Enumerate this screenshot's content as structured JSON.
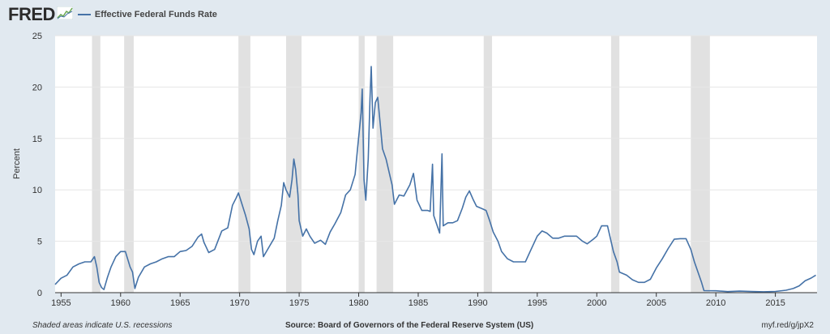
{
  "header": {
    "logo": "FRED",
    "legend_label": "Effective Federal Funds Rate",
    "series_color": "#4572a7"
  },
  "footer": {
    "note": "Shaded areas indicate U.S. recessions",
    "source": "Source: Board of Governors of the Federal Reserve System (US)",
    "link": "myf.red/g/jpX2"
  },
  "chart_data": {
    "type": "line",
    "title": "",
    "xlabel": "",
    "ylabel": "Percent",
    "xlim": [
      1954.5,
      2018.5
    ],
    "ylim": [
      0,
      25
    ],
    "yticks": [
      0,
      5,
      10,
      15,
      20,
      25
    ],
    "xticks": [
      1955,
      1960,
      1965,
      1970,
      1975,
      1980,
      1985,
      1990,
      1995,
      2000,
      2005,
      2010,
      2015
    ],
    "grid": true,
    "legend_position": "top-left",
    "recessions": [
      [
        1957.6,
        1958.3
      ],
      [
        1960.3,
        1961.1
      ],
      [
        1969.9,
        1970.9
      ],
      [
        1973.9,
        1975.2
      ],
      [
        1980.0,
        1980.5
      ],
      [
        1981.5,
        1982.9
      ],
      [
        1990.5,
        1991.2
      ],
      [
        2001.2,
        2001.9
      ],
      [
        2007.9,
        2009.5
      ]
    ],
    "series": [
      {
        "name": "Effective Federal Funds Rate",
        "color": "#4572a7",
        "points": [
          [
            1954.5,
            0.8
          ],
          [
            1955.0,
            1.4
          ],
          [
            1955.5,
            1.7
          ],
          [
            1956.0,
            2.5
          ],
          [
            1956.5,
            2.8
          ],
          [
            1957.0,
            3.0
          ],
          [
            1957.5,
            3.0
          ],
          [
            1957.8,
            3.5
          ],
          [
            1958.0,
            2.5
          ],
          [
            1958.2,
            1.0
          ],
          [
            1958.4,
            0.5
          ],
          [
            1958.6,
            0.3
          ],
          [
            1958.9,
            1.5
          ],
          [
            1959.2,
            2.5
          ],
          [
            1959.6,
            3.5
          ],
          [
            1960.0,
            4.0
          ],
          [
            1960.4,
            4.0
          ],
          [
            1960.8,
            2.5
          ],
          [
            1961.0,
            2.0
          ],
          [
            1961.2,
            0.4
          ],
          [
            1961.5,
            1.5
          ],
          [
            1962.0,
            2.5
          ],
          [
            1962.5,
            2.8
          ],
          [
            1963.0,
            3.0
          ],
          [
            1963.5,
            3.3
          ],
          [
            1964.0,
            3.5
          ],
          [
            1964.5,
            3.5
          ],
          [
            1965.0,
            4.0
          ],
          [
            1965.5,
            4.1
          ],
          [
            1966.0,
            4.5
          ],
          [
            1966.5,
            5.4
          ],
          [
            1966.8,
            5.7
          ],
          [
            1967.0,
            4.9
          ],
          [
            1967.4,
            3.9
          ],
          [
            1967.9,
            4.2
          ],
          [
            1968.5,
            6.0
          ],
          [
            1969.0,
            6.3
          ],
          [
            1969.4,
            8.5
          ],
          [
            1969.7,
            9.2
          ],
          [
            1969.9,
            9.7
          ],
          [
            1970.2,
            8.6
          ],
          [
            1970.5,
            7.5
          ],
          [
            1970.8,
            6.2
          ],
          [
            1971.0,
            4.2
          ],
          [
            1971.2,
            3.7
          ],
          [
            1971.5,
            5.0
          ],
          [
            1971.8,
            5.5
          ],
          [
            1972.0,
            3.5
          ],
          [
            1972.5,
            4.5
          ],
          [
            1972.9,
            5.3
          ],
          [
            1973.2,
            7.0
          ],
          [
            1973.5,
            8.5
          ],
          [
            1973.7,
            10.7
          ],
          [
            1973.9,
            10.0
          ],
          [
            1974.2,
            9.3
          ],
          [
            1974.4,
            11.0
          ],
          [
            1974.55,
            13.0
          ],
          [
            1974.7,
            12.0
          ],
          [
            1974.9,
            9.5
          ],
          [
            1975.0,
            7.0
          ],
          [
            1975.3,
            5.5
          ],
          [
            1975.6,
            6.2
          ],
          [
            1975.9,
            5.5
          ],
          [
            1976.3,
            4.8
          ],
          [
            1976.8,
            5.1
          ],
          [
            1977.2,
            4.7
          ],
          [
            1977.6,
            5.9
          ],
          [
            1978.0,
            6.7
          ],
          [
            1978.5,
            7.8
          ],
          [
            1978.9,
            9.5
          ],
          [
            1979.3,
            10.0
          ],
          [
            1979.7,
            11.5
          ],
          [
            1979.9,
            14.0
          ],
          [
            1980.2,
            17.5
          ],
          [
            1980.3,
            19.8
          ],
          [
            1980.45,
            11.0
          ],
          [
            1980.6,
            9.0
          ],
          [
            1980.8,
            13.0
          ],
          [
            1980.95,
            18.9
          ],
          [
            1981.05,
            22.0
          ],
          [
            1981.2,
            16.0
          ],
          [
            1981.4,
            18.5
          ],
          [
            1981.6,
            19.0
          ],
          [
            1981.8,
            16.5
          ],
          [
            1982.0,
            14.0
          ],
          [
            1982.3,
            13.0
          ],
          [
            1982.6,
            11.5
          ],
          [
            1982.8,
            10.5
          ],
          [
            1983.0,
            8.6
          ],
          [
            1983.4,
            9.5
          ],
          [
            1983.8,
            9.4
          ],
          [
            1984.3,
            10.5
          ],
          [
            1984.6,
            11.6
          ],
          [
            1984.9,
            9.0
          ],
          [
            1985.3,
            8.0
          ],
          [
            1985.8,
            8.0
          ],
          [
            1986.0,
            7.9
          ],
          [
            1986.2,
            12.5
          ],
          [
            1986.3,
            7.5
          ],
          [
            1986.8,
            5.8
          ],
          [
            1987.0,
            13.5
          ],
          [
            1987.1,
            6.5
          ],
          [
            1987.5,
            6.8
          ],
          [
            1987.9,
            6.8
          ],
          [
            1988.3,
            7.0
          ],
          [
            1988.7,
            8.2
          ],
          [
            1989.0,
            9.3
          ],
          [
            1989.3,
            9.9
          ],
          [
            1989.6,
            9.1
          ],
          [
            1989.9,
            8.4
          ],
          [
            1990.3,
            8.2
          ],
          [
            1990.7,
            8.0
          ],
          [
            1991.0,
            7.0
          ],
          [
            1991.3,
            5.9
          ],
          [
            1991.7,
            5.0
          ],
          [
            1992.0,
            4.0
          ],
          [
            1992.5,
            3.3
          ],
          [
            1993.0,
            3.0
          ],
          [
            1993.5,
            3.0
          ],
          [
            1994.0,
            3.0
          ],
          [
            1994.4,
            4.0
          ],
          [
            1994.8,
            5.0
          ],
          [
            1995.0,
            5.5
          ],
          [
            1995.4,
            6.0
          ],
          [
            1995.8,
            5.8
          ],
          [
            1996.3,
            5.3
          ],
          [
            1996.8,
            5.3
          ],
          [
            1997.3,
            5.5
          ],
          [
            1997.8,
            5.5
          ],
          [
            1998.3,
            5.5
          ],
          [
            1998.8,
            5.0
          ],
          [
            1999.2,
            4.75
          ],
          [
            1999.7,
            5.2
          ],
          [
            2000.0,
            5.5
          ],
          [
            2000.4,
            6.5
          ],
          [
            2000.9,
            6.5
          ],
          [
            2001.1,
            5.5
          ],
          [
            2001.4,
            4.0
          ],
          [
            2001.7,
            3.0
          ],
          [
            2001.9,
            2.0
          ],
          [
            2002.5,
            1.7
          ],
          [
            2003.0,
            1.25
          ],
          [
            2003.5,
            1.0
          ],
          [
            2004.0,
            1.0
          ],
          [
            2004.5,
            1.3
          ],
          [
            2005.0,
            2.4
          ],
          [
            2005.5,
            3.3
          ],
          [
            2006.0,
            4.3
          ],
          [
            2006.5,
            5.2
          ],
          [
            2007.0,
            5.25
          ],
          [
            2007.5,
            5.25
          ],
          [
            2007.9,
            4.2
          ],
          [
            2008.2,
            3.0
          ],
          [
            2008.5,
            2.0
          ],
          [
            2008.8,
            1.0
          ],
          [
            2009.0,
            0.2
          ],
          [
            2010.0,
            0.18
          ],
          [
            2011.0,
            0.1
          ],
          [
            2012.0,
            0.15
          ],
          [
            2013.0,
            0.11
          ],
          [
            2014.0,
            0.09
          ],
          [
            2015.0,
            0.12
          ],
          [
            2015.9,
            0.24
          ],
          [
            2016.5,
            0.4
          ],
          [
            2017.0,
            0.66
          ],
          [
            2017.5,
            1.15
          ],
          [
            2018.0,
            1.42
          ],
          [
            2018.4,
            1.7
          ]
        ]
      }
    ]
  }
}
